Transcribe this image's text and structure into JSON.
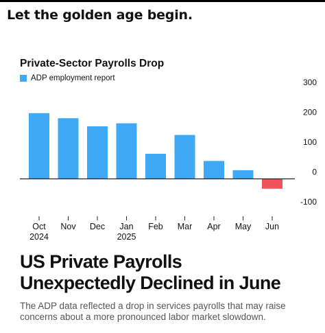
{
  "post": {
    "caption": "Let the golden age begin."
  },
  "colors": {
    "positive_bar": "#3FA9F5",
    "negative_bar": "#F0515B",
    "zero_line": "#222222",
    "grid": "#d9d9d9",
    "text": "#111111",
    "deck_text": "#555555"
  },
  "article": {
    "headline_line1": "US Private Payrolls",
    "headline_line2": "Unexpectedly Declined in June",
    "deck_line1": "The ADP data reflected a drop in services payrolls that may raise",
    "deck_line2": "concerns about a more pronounced labor market slowdown."
  },
  "chart_data": {
    "type": "bar",
    "title": "Private-Sector Payrolls Drop",
    "legend": [
      "ADP employment report"
    ],
    "legend_position": "top-left",
    "categories": [
      "Oct\n2024",
      "Nov",
      "Dec",
      "Jan\n2025",
      "Feb",
      "Mar",
      "Apr",
      "May",
      "Jun"
    ],
    "series": [
      {
        "name": "ADP employment report",
        "values": [
          220,
          203,
          176,
          186,
          84,
          147,
          60,
          29,
          -33
        ]
      }
    ],
    "ylim": [
      -100,
      300
    ],
    "yticks": [
      300,
      200,
      100,
      0,
      -100
    ],
    "y_axis_side": "right",
    "grid": true,
    "xlabel": "",
    "ylabel": ""
  }
}
